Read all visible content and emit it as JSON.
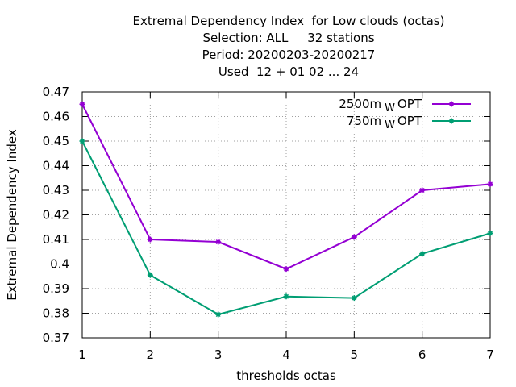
{
  "chart_data": {
    "type": "line",
    "title_lines": [
      "Extremal Dependency Index  for Low clouds (octas)",
      "Selection: ALL     32 stations",
      "Period: 20200203-20200217",
      "Used  12 + 01 02 ... 24"
    ],
    "xlabel": "thresholds octas",
    "ylabel": "Extremal Dependency Index",
    "x": [
      1,
      2,
      3,
      4,
      5,
      6,
      7
    ],
    "xlim": [
      1,
      7
    ],
    "ylim": [
      0.37,
      0.47
    ],
    "xticks": [
      "1",
      "2",
      "3",
      "4",
      "5",
      "6",
      "7"
    ],
    "yticks": [
      "0.37",
      "0.38",
      "0.39",
      "0.4",
      "0.41",
      "0.42",
      "0.43",
      "0.44",
      "0.45",
      "0.46",
      "0.47"
    ],
    "grid": true,
    "legend_position": "top-right",
    "series": [
      {
        "name_main": "2500m",
        "name_sub": "W",
        "name_tail": "OPT",
        "color": "#9400d3",
        "values": [
          0.465,
          0.41,
          0.409,
          0.398,
          0.411,
          0.43,
          0.4325
        ]
      },
      {
        "name_main": "750m",
        "name_sub": "W",
        "name_tail": "OPT",
        "color": "#009e73",
        "values": [
          0.45,
          0.3955,
          0.3795,
          0.3868,
          0.3862,
          0.4042,
          0.4125
        ]
      }
    ]
  }
}
